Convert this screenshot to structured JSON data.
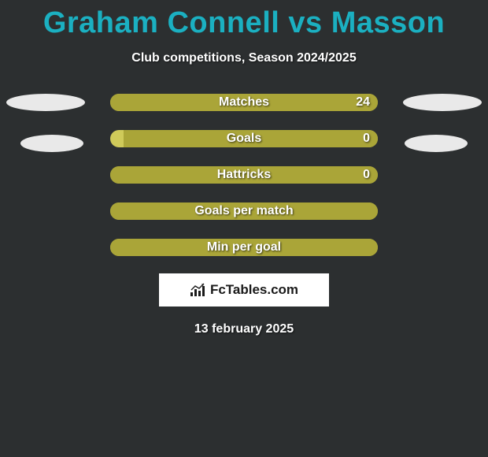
{
  "title": "Graham Connell vs Masson",
  "subtitle": "Club competitions, Season 2024/2025",
  "colors": {
    "background": "#2c2f30",
    "title": "#1bb0c1",
    "text": "#ffffff",
    "left_fill": "#aaa538",
    "right_fill": "#aaa538",
    "bar_bg": "#aaa538",
    "oval_left": "#e9e9e9",
    "oval_right": "#e9e9e9"
  },
  "side_ovals": {
    "left_count": 2,
    "right_count": 2
  },
  "bars": [
    {
      "label": "Matches",
      "left_value": "",
      "right_value": "24",
      "left_pct": 0,
      "right_pct": 100,
      "left_color": "#aaa538",
      "right_color": "#aaa538",
      "bg": "#aaa538"
    },
    {
      "label": "Goals",
      "left_value": "",
      "right_value": "0",
      "left_pct": 0,
      "right_pct": 95,
      "left_color": "#aaa538",
      "right_color": "#aaa538",
      "bg": "#cfca5a"
    },
    {
      "label": "Hattricks",
      "left_value": "",
      "right_value": "0",
      "left_pct": 0,
      "right_pct": 100,
      "left_color": "#aaa538",
      "right_color": "#aaa538",
      "bg": "#aaa538"
    },
    {
      "label": "Goals per match",
      "left_value": "",
      "right_value": "",
      "left_pct": 0,
      "right_pct": 100,
      "left_color": "#aaa538",
      "right_color": "#aaa538",
      "bg": "#aaa538"
    },
    {
      "label": "Min per goal",
      "left_value": "",
      "right_value": "",
      "left_pct": 0,
      "right_pct": 100,
      "left_color": "#aaa538",
      "right_color": "#aaa538",
      "bg": "#aaa538"
    }
  ],
  "brand": {
    "text": "FcTables.com"
  },
  "date": "13 february 2025"
}
